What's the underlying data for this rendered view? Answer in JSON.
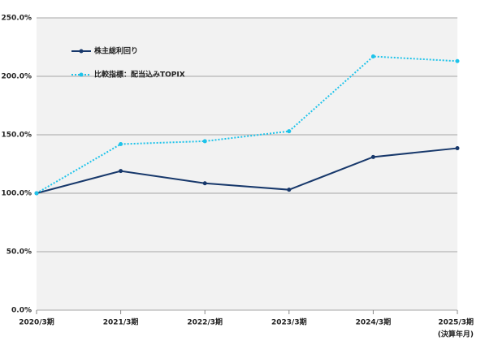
{
  "chart_data": {
    "type": "line",
    "categories": [
      "2020/3期",
      "2021/3期",
      "2022/3期",
      "2023/3期",
      "2024/3期",
      "2025/3期"
    ],
    "annotation": "(決算年月)",
    "series": [
      {
        "name": "株主総利回り",
        "color": "#17386b",
        "style": "solid",
        "values": [
          100,
          119,
          108.5,
          103,
          131,
          138.5
        ]
      },
      {
        "name": "比較指標：配当込みTOPIX",
        "color": "#1ec3ea",
        "style": "dotted",
        "values": [
          100,
          142,
          144.5,
          153,
          217,
          213
        ]
      }
    ],
    "ylim": [
      0,
      250
    ],
    "yticks": [
      {
        "value": 0,
        "label": "0.0%"
      },
      {
        "value": 50,
        "label": "50.0%"
      },
      {
        "value": 100,
        "label": "100.0%"
      },
      {
        "value": 150,
        "label": "150.0%"
      },
      {
        "value": 200,
        "label": "200.0%"
      },
      {
        "value": 250,
        "label": "250.0%"
      }
    ],
    "grid": true,
    "legend": "upper left"
  }
}
